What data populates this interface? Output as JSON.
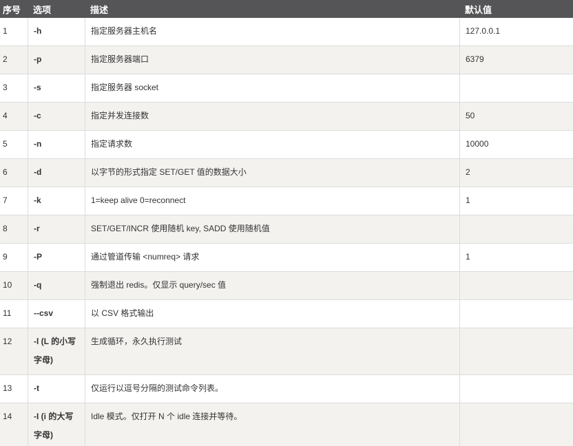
{
  "colors": {
    "header_bg": "#555557",
    "header_text": "#ffffff",
    "row_bg": "#ffffff",
    "row_alt_bg": "#f3f2ef",
    "border": "#dcdcdc",
    "body_text": "#333333"
  },
  "table": {
    "headers": [
      "序号",
      "选项",
      "描述",
      "默认值"
    ],
    "rows": [
      {
        "num": "1",
        "option": "-h",
        "desc": "指定服务器主机名",
        "default": "127.0.0.1"
      },
      {
        "num": "2",
        "option": "-p",
        "desc": "指定服务器端口",
        "default": "6379"
      },
      {
        "num": "3",
        "option": "-s",
        "desc": "指定服务器 socket",
        "default": ""
      },
      {
        "num": "4",
        "option": "-c",
        "desc": "指定并发连接数",
        "default": "50"
      },
      {
        "num": "5",
        "option": "-n",
        "desc": "指定请求数",
        "default": "10000"
      },
      {
        "num": "6",
        "option": "-d",
        "desc": "以字节的形式指定 SET/GET 值的数据大小",
        "default": "2"
      },
      {
        "num": "7",
        "option": "-k",
        "desc": "1=keep alive 0=reconnect",
        "default": "1"
      },
      {
        "num": "8",
        "option": "-r",
        "desc": "SET/GET/INCR 使用随机 key, SADD 使用随机值",
        "default": ""
      },
      {
        "num": "9",
        "option": "-P",
        "desc": "通过管道传输 <numreq> 请求",
        "default": "1"
      },
      {
        "num": "10",
        "option": "-q",
        "desc": "强制退出 redis。仅显示 query/sec 值",
        "default": ""
      },
      {
        "num": "11",
        "option": "--csv",
        "desc": "以 CSV 格式输出",
        "default": ""
      },
      {
        "num": "12",
        "option": "-l (L 的小写字母)",
        "desc": "生成循环，永久执行测试",
        "default": ""
      },
      {
        "num": "13",
        "option": "-t",
        "desc": "仅运行以逗号分隔的测试命令列表。",
        "default": ""
      },
      {
        "num": "14",
        "option": "-I (i 的大写字母)",
        "desc": "Idle 模式。仅打开 N 个 idle 连接并等待。",
        "default": ""
      }
    ]
  }
}
